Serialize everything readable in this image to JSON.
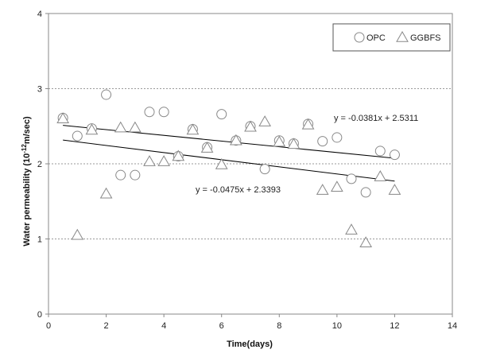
{
  "chart_data": {
    "type": "scatter",
    "xlabel": "Time(days)",
    "ylabel": {
      "prefix": "Water permeability (10",
      "exponent": "-12",
      "suffix": "m/sec)"
    },
    "xlim": [
      0,
      14
    ],
    "ylim": [
      0,
      4
    ],
    "x_ticks": [
      0,
      2,
      4,
      6,
      8,
      10,
      12,
      14
    ],
    "y_ticks": [
      0,
      1,
      2,
      3,
      4
    ],
    "grid": "horizontal",
    "legend_position": "top-right",
    "series": [
      {
        "name": "OPC",
        "marker": "circle",
        "color": "#888888",
        "points": [
          [
            0.5,
            2.61
          ],
          [
            1,
            2.37
          ],
          [
            1.5,
            2.47
          ],
          [
            2,
            2.92
          ],
          [
            2.5,
            1.85
          ],
          [
            3,
            1.85
          ],
          [
            3.5,
            2.69
          ],
          [
            4,
            2.69
          ],
          [
            4.5,
            2.1
          ],
          [
            5,
            2.46
          ],
          [
            5.5,
            2.22
          ],
          [
            6,
            2.66
          ],
          [
            6.5,
            2.31
          ],
          [
            7,
            2.5
          ],
          [
            7.5,
            1.93
          ],
          [
            8,
            2.31
          ],
          [
            8.5,
            2.27
          ],
          [
            9,
            2.53
          ],
          [
            9.5,
            2.3
          ],
          [
            10,
            2.35
          ],
          [
            10.5,
            1.8
          ],
          [
            11,
            1.62
          ],
          [
            11.5,
            2.17
          ],
          [
            12,
            2.12
          ]
        ],
        "trendline": {
          "slope": -0.0381,
          "intercept": 2.5311,
          "x_range": [
            0.5,
            12
          ],
          "equation": "y = -0.0381x + 2.5311"
        }
      },
      {
        "name": "GGBFS",
        "marker": "triangle",
        "color": "#888888",
        "points": [
          [
            0.5,
            2.6
          ],
          [
            1,
            1.05
          ],
          [
            1.5,
            2.45
          ],
          [
            2,
            1.6
          ],
          [
            2.5,
            2.48
          ],
          [
            3,
            2.48
          ],
          [
            3.5,
            2.03
          ],
          [
            4,
            2.03
          ],
          [
            4.5,
            2.1
          ],
          [
            5,
            2.45
          ],
          [
            5.5,
            2.21
          ],
          [
            6,
            1.99
          ],
          [
            6.5,
            2.31
          ],
          [
            7,
            2.49
          ],
          [
            7.5,
            2.56
          ],
          [
            8,
            2.29
          ],
          [
            8.5,
            2.26
          ],
          [
            9,
            2.52
          ],
          [
            9.5,
            1.65
          ],
          [
            10,
            1.69
          ],
          [
            10.5,
            1.12
          ],
          [
            11,
            0.95
          ],
          [
            11.5,
            1.83
          ],
          [
            12,
            1.65
          ]
        ],
        "trendline": {
          "slope": -0.0475,
          "intercept": 2.3393,
          "x_range": [
            0.5,
            12
          ],
          "equation": "y = -0.0475x + 2.3393"
        }
      }
    ]
  }
}
